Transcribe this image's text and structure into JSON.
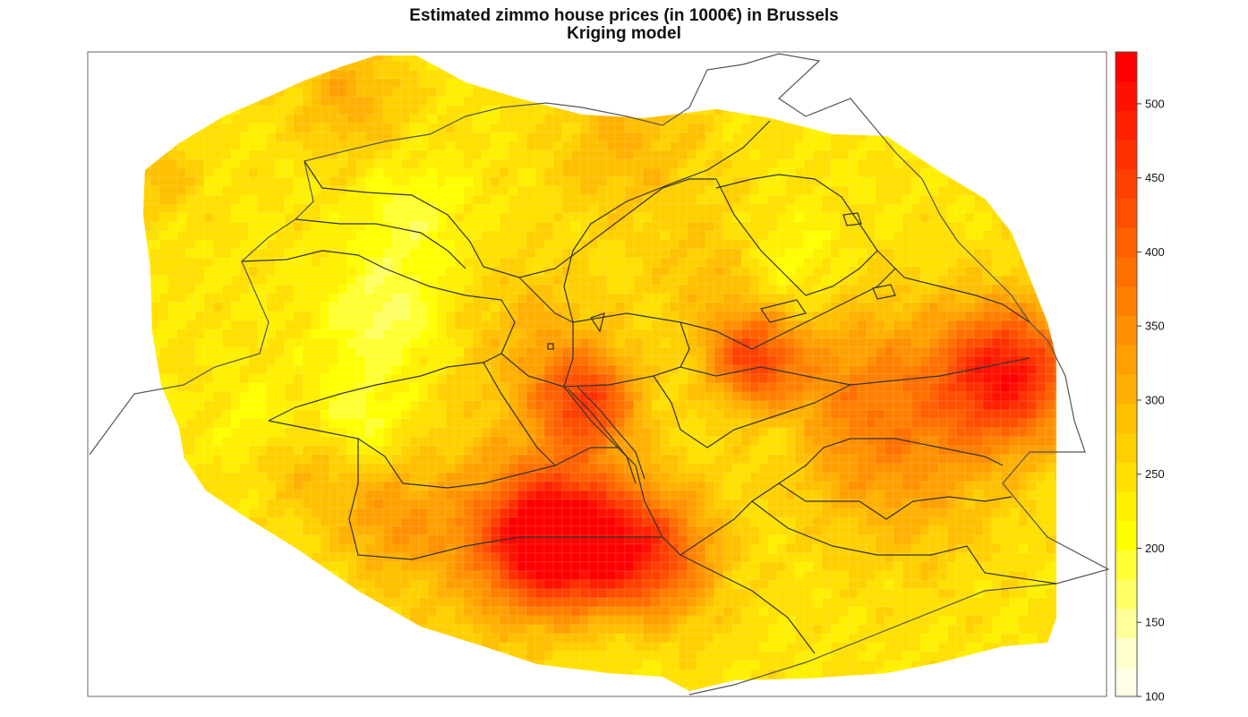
{
  "chart_data": {
    "type": "heatmap",
    "title": "Estimated zimmo house prices (in 1000€) in Brussels",
    "subtitle": "Kriging model",
    "colorbar": {
      "range": [
        100,
        535
      ],
      "ticks": [
        100,
        150,
        200,
        250,
        300,
        350,
        400,
        450,
        500
      ],
      "colors": [
        "#FFFFE6",
        "#FFFFCC",
        "#FFFF99",
        "#FFFF66",
        "#FFFF33",
        "#FFFF00",
        "#FFF000",
        "#FFE000",
        "#FFD000",
        "#FFC000",
        "#FFB000",
        "#FFA000",
        "#FF9000",
        "#FF8000",
        "#FF7000",
        "#FF6000",
        "#FF5000",
        "#FF4000",
        "#FF3000",
        "#FF2000",
        "#FF1000",
        "#FF0000"
      ]
    },
    "hotspots": [
      {
        "label": "east hotspot",
        "value": 500
      },
      {
        "label": "south-west hotspot",
        "value": 520
      },
      {
        "label": "south-centre hotspot",
        "value": 470
      },
      {
        "label": "city-centre hotspot",
        "value": 440
      },
      {
        "label": "east-centre hotspot",
        "value": 430
      }
    ]
  }
}
